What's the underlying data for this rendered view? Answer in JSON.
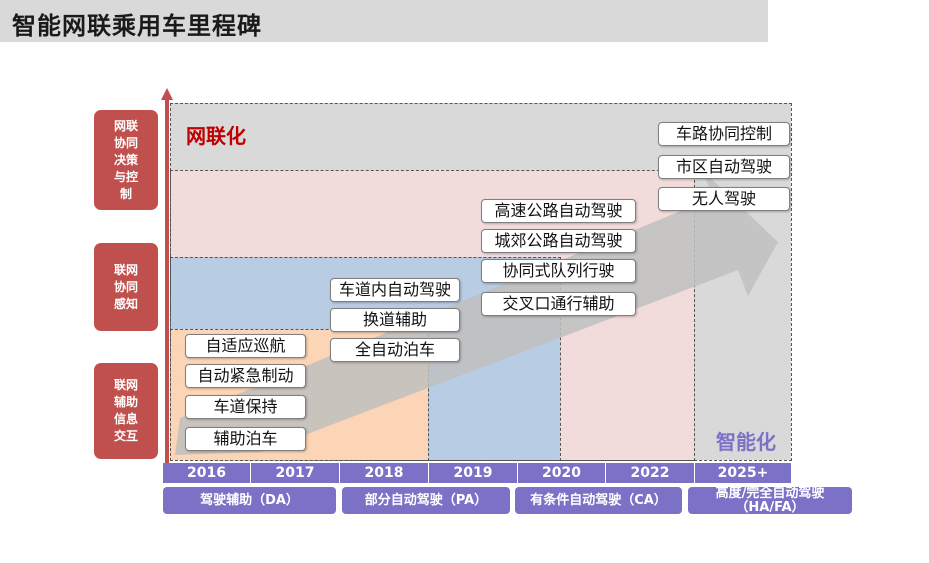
{
  "title": "智能网联乘用车里程碑",
  "axis_labels": {
    "connected": "网联化",
    "intelligent": "智能化"
  },
  "side_labels": [
    "网联协同决策与控制",
    "联网协同感知",
    "联网辅助信息交互"
  ],
  "years": [
    "2016",
    "2017",
    "2018",
    "2019",
    "2020",
    "2022",
    "2025+"
  ],
  "stages": [
    "驾驶辅助（DA）",
    "部分自动驾驶（PA）",
    "有条件自动驾驶（CA）",
    "高度/完全自动驾驶（HA/FA）"
  ],
  "features": {
    "da": [
      "自适应巡航",
      "自动紧急制动",
      "车道保持",
      "辅助泊车"
    ],
    "pa": [
      "车道内自动驾驶",
      "换道辅助",
      "全自动泊车"
    ],
    "ca": [
      "高速公路自动驾驶",
      "城郊公路自动驾驶",
      "协同式队列行驶",
      "交叉口通行辅助"
    ],
    "hafa": [
      "车路协同控制",
      "市区自动驾驶",
      "无人驾驶"
    ]
  },
  "colors": {
    "red": "#c0504d",
    "purple": "#7b72c7",
    "peach": "#fbd5b5",
    "blue": "#b8cce4",
    "pink": "#f2dcdb",
    "gray": "#d9d9d9"
  }
}
